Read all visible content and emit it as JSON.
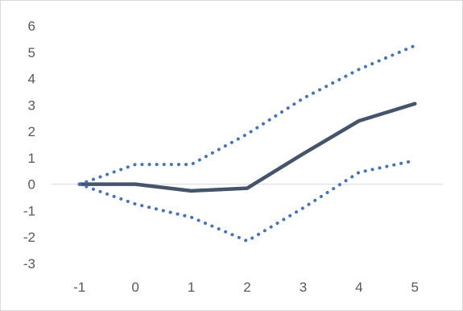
{
  "chart_data": {
    "type": "line",
    "title": "",
    "xlabel": "",
    "ylabel": "",
    "x": [
      -1,
      0,
      1,
      2,
      3,
      4,
      5
    ],
    "xlim": [
      -1.5,
      5.5
    ],
    "ylim": [
      -3,
      6
    ],
    "yticks": [
      6,
      5,
      4,
      3,
      2,
      1,
      0,
      -1,
      -2,
      -3
    ],
    "xticks": [
      -1,
      0,
      1,
      2,
      3,
      4,
      5
    ],
    "grid": false,
    "legend": "none",
    "series": [
      {
        "style": "solid",
        "color": "#44546a",
        "values": [
          0,
          0,
          -0.25,
          -0.15,
          1.15,
          2.4,
          3.05
        ]
      },
      {
        "style": "dotted",
        "color": "#4472c4",
        "values": [
          0,
          0.75,
          0.75,
          1.9,
          3.25,
          4.35,
          5.25
        ]
      },
      {
        "style": "dotted",
        "color": "#4472c4",
        "values": [
          0,
          -0.75,
          -1.25,
          -2.15,
          -0.9,
          0.45,
          0.9
        ]
      }
    ]
  }
}
